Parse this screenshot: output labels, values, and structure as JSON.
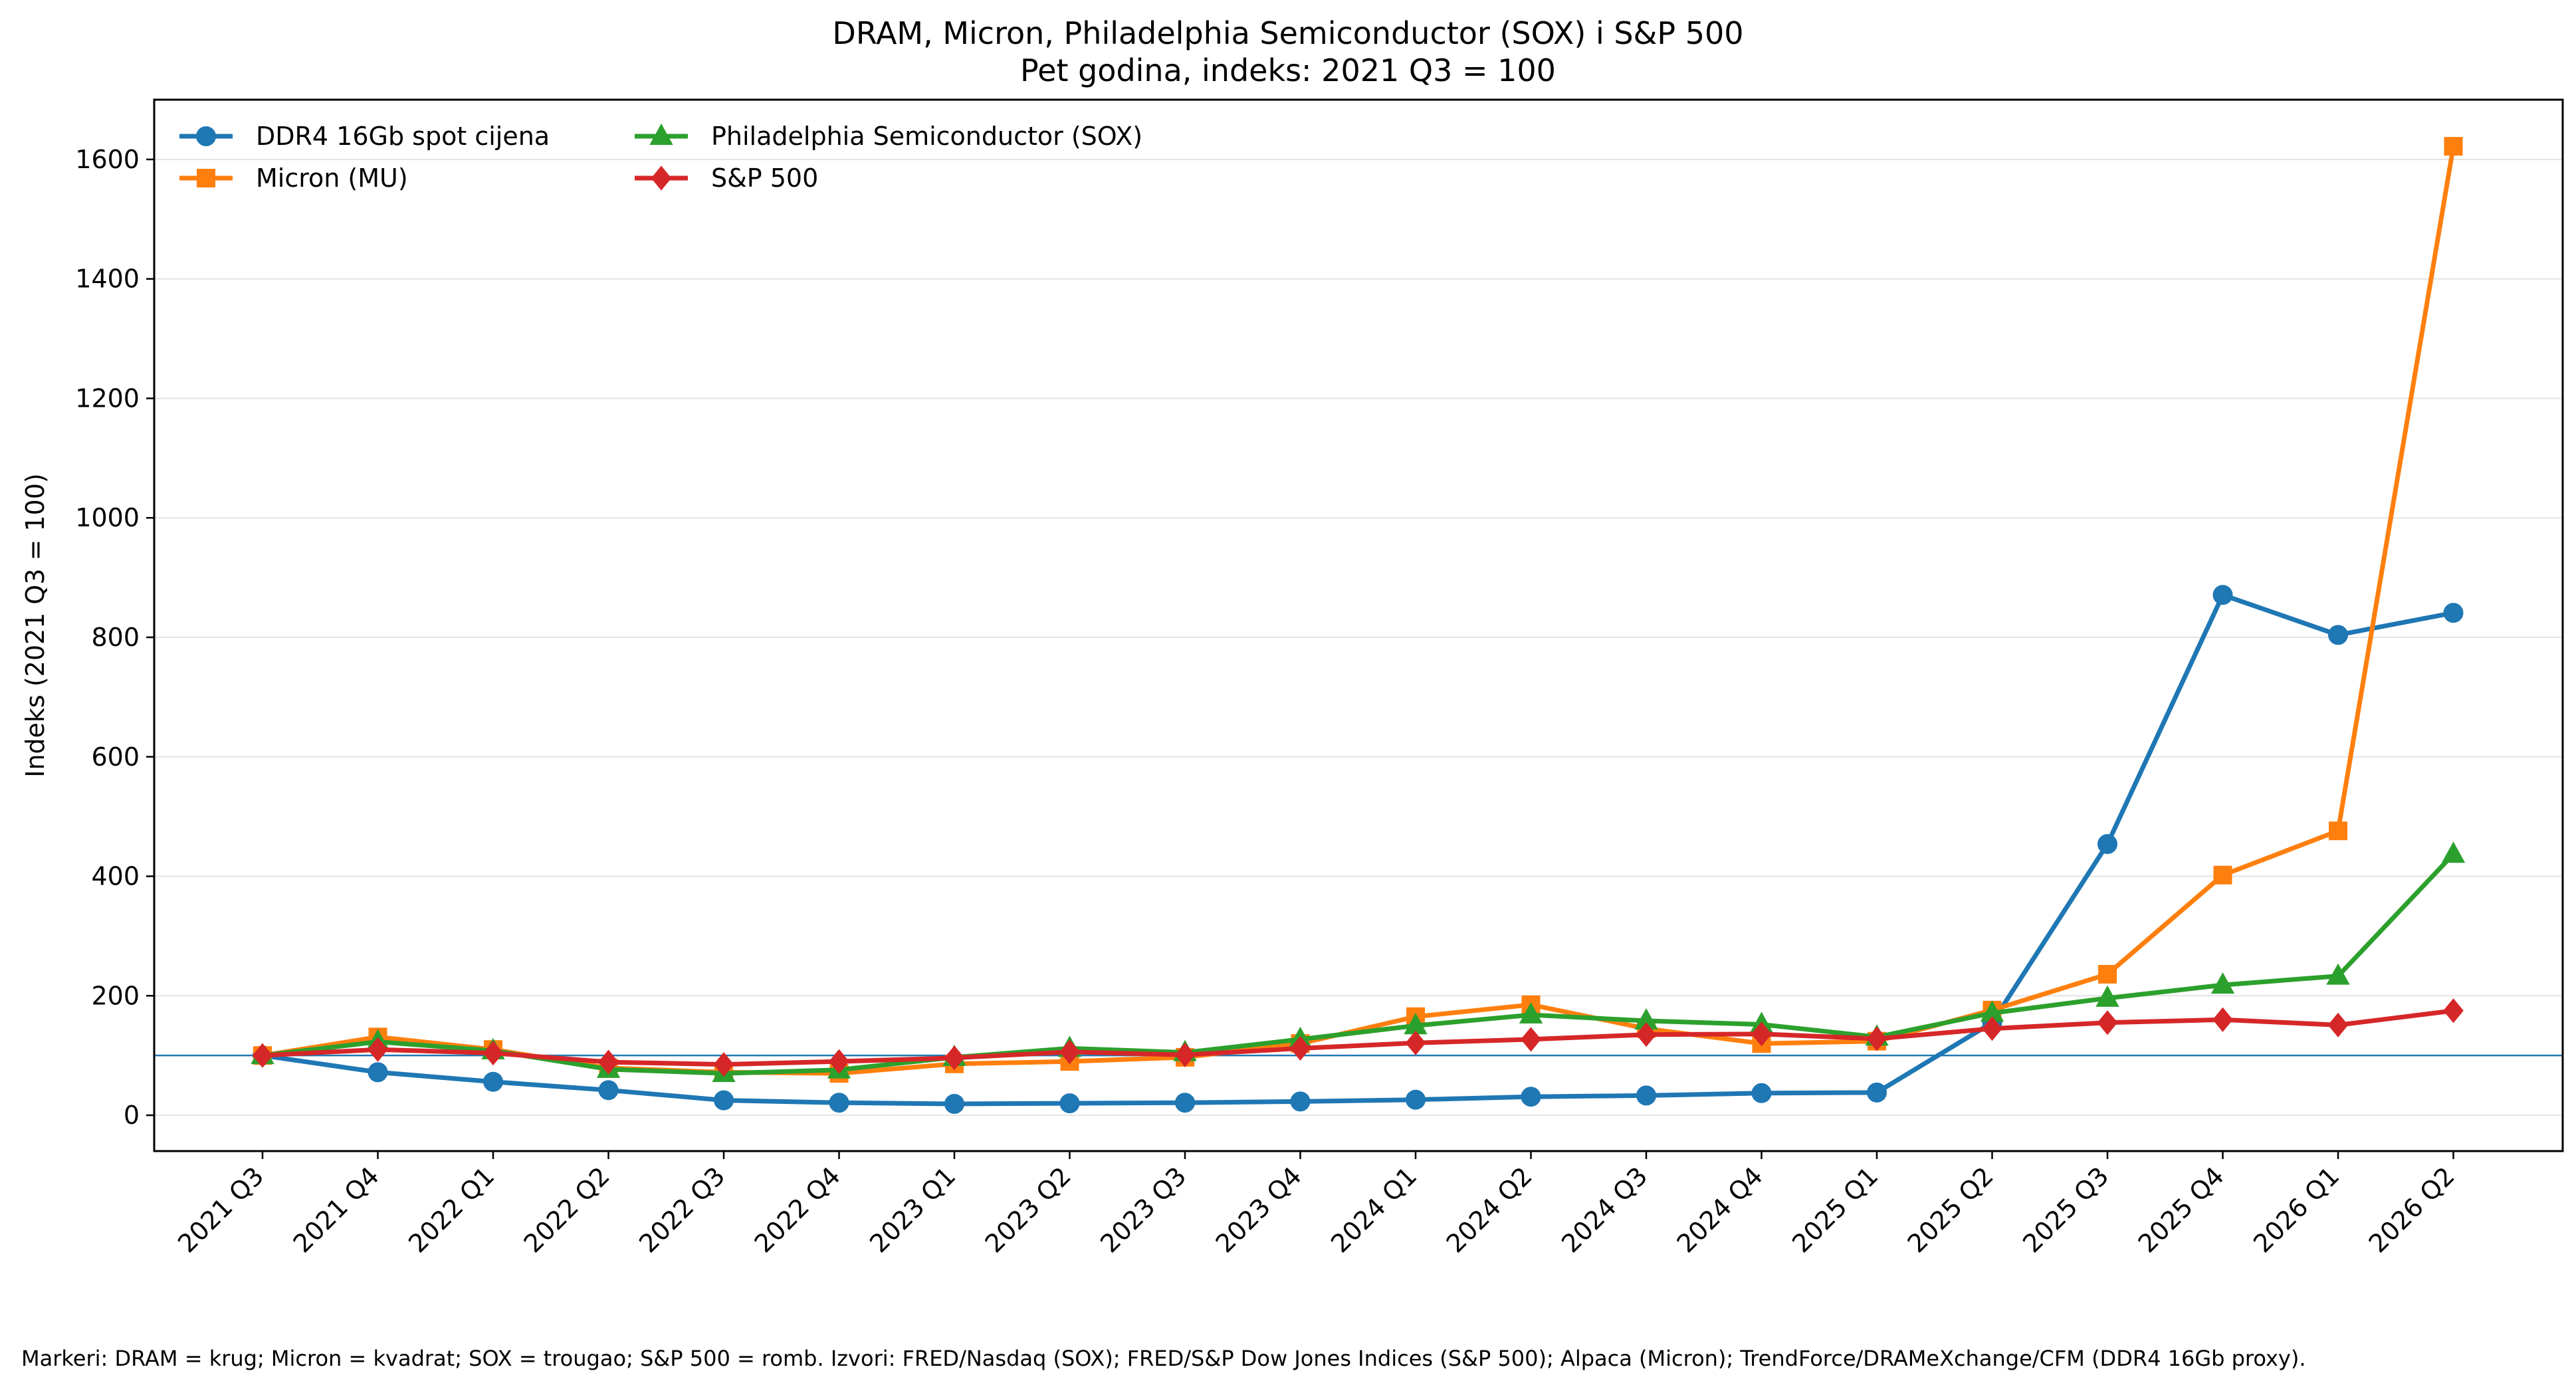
{
  "chart_data": {
    "type": "line",
    "title": "DRAM, Micron, Philadelphia Semiconductor (SOX) i S&P 500",
    "subtitle": "Pet godina, indeks: 2021 Q3 = 100",
    "xlabel": "",
    "ylabel": "Indeks (2021 Q3 = 100)",
    "ylim": [
      -60,
      1700
    ],
    "yticks": [
      0,
      200,
      400,
      600,
      800,
      1000,
      1200,
      1400,
      1600
    ],
    "grid": "horizontal",
    "legend_position": "top-left",
    "reference_line": 100,
    "categories": [
      "2021 Q3",
      "2021 Q4",
      "2022 Q1",
      "2022 Q2",
      "2022 Q3",
      "2022 Q4",
      "2023 Q1",
      "2023 Q2",
      "2023 Q3",
      "2023 Q4",
      "2024 Q1",
      "2024 Q2",
      "2024 Q3",
      "2024 Q4",
      "2025 Q1",
      "2025 Q2",
      "2025 Q3",
      "2025 Q4",
      "2026 Q1",
      "2026 Q2"
    ],
    "series": [
      {
        "name": "DDR4 16Gb spot cijena",
        "color": "#1f77b4",
        "marker": "circle",
        "values": [
          100,
          72,
          56,
          42,
          25,
          21,
          19,
          20,
          21,
          23,
          26,
          31,
          33,
          37,
          38,
          155,
          454,
          871,
          804,
          841
        ]
      },
      {
        "name": "Micron (MU)",
        "color": "#ff7f0e",
        "marker": "square",
        "values": [
          100,
          131,
          110,
          79,
          72,
          70,
          86,
          90,
          97,
          120,
          165,
          185,
          145,
          120,
          124,
          176,
          236,
          402,
          476,
          1622
        ]
      },
      {
        "name": "Philadelphia Semiconductor (SOX)",
        "color": "#2ca02c",
        "marker": "triangle",
        "values": [
          100,
          123,
          108,
          77,
          70,
          76,
          97,
          112,
          105,
          127,
          150,
          168,
          158,
          152,
          131,
          171,
          196,
          218,
          233,
          437
        ]
      },
      {
        "name": "S&P 500",
        "color": "#d62728",
        "marker": "diamond",
        "values": [
          100,
          110,
          104,
          89,
          85,
          90,
          96,
          106,
          101,
          112,
          121,
          127,
          135,
          136,
          128,
          145,
          155,
          160,
          151,
          175
        ]
      }
    ]
  },
  "footer": "Markeri: DRAM = krug; Micron = kvadrat; SOX = trougao; S&P 500 = romb. Izvori: FRED/Nasdaq (SOX); FRED/S&P Dow Jones Indices (S&P 500); Alpaca (Micron); TrendForce/DRAMeXchange/CFM (DDR4 16Gb proxy)."
}
